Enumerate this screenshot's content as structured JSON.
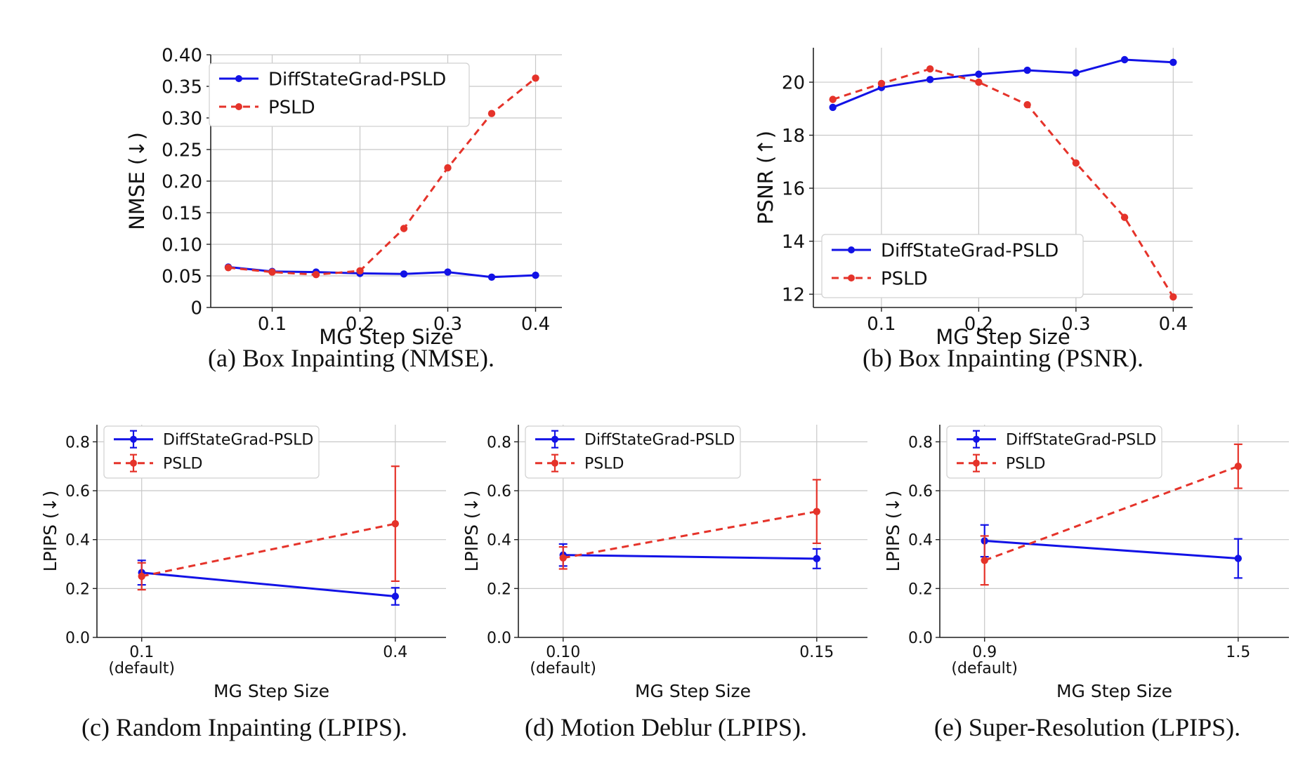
{
  "colors": {
    "series_a": "#1212e6",
    "series_b": "#e5332a",
    "grid": "#c8c8c8",
    "axis": "#222222"
  },
  "chart_data": [
    {
      "id": "a",
      "type": "line",
      "caption": "(a) Box Inpainting (NMSE).",
      "xlabel": "MG Step Size",
      "ylabel": "NMSE (↓)",
      "xlim": [
        0.03,
        0.43
      ],
      "ylim": [
        0,
        0.4
      ],
      "xticks": [
        0.1,
        0.2,
        0.3,
        0.4
      ],
      "xtick_labels": [
        "0.1",
        "0.2",
        "0.3",
        "0.4"
      ],
      "yticks": [
        0,
        0.05,
        0.1,
        0.15,
        0.2,
        0.25,
        0.3,
        0.35,
        0.4
      ],
      "ytick_labels": [
        "0",
        "0.05",
        "0.10",
        "0.15",
        "0.20",
        "0.25",
        "0.30",
        "0.35",
        "0.40"
      ],
      "legend_position": "top-left",
      "x": [
        0.05,
        0.1,
        0.15,
        0.2,
        0.25,
        0.3,
        0.35,
        0.4
      ],
      "series": [
        {
          "name": "DiffStateGrad-PSLD",
          "style": "solid",
          "color": "#1212e6",
          "values": [
            0.064,
            0.057,
            0.056,
            0.054,
            0.053,
            0.056,
            0.048,
            0.051
          ]
        },
        {
          "name": "PSLD",
          "style": "dashed",
          "color": "#e5332a",
          "values": [
            0.063,
            0.056,
            0.052,
            0.058,
            0.125,
            0.221,
            0.307,
            0.363
          ]
        }
      ]
    },
    {
      "id": "b",
      "type": "line",
      "caption": "(b) Box Inpainting (PSNR).",
      "xlabel": "MG Step Size",
      "ylabel": "PSNR (↑)",
      "xlim": [
        0.03,
        0.42
      ],
      "ylim": [
        11.5,
        21.3
      ],
      "xticks": [
        0.1,
        0.2,
        0.3,
        0.4
      ],
      "xtick_labels": [
        "0.1",
        "0.2",
        "0.3",
        "0.4"
      ],
      "yticks": [
        12,
        14,
        16,
        18,
        20
      ],
      "ytick_labels": [
        "12",
        "14",
        "16",
        "18",
        "20"
      ],
      "legend_position": "bottom-left",
      "x": [
        0.05,
        0.1,
        0.15,
        0.2,
        0.25,
        0.3,
        0.35,
        0.4
      ],
      "series": [
        {
          "name": "DiffStateGrad-PSLD",
          "style": "solid",
          "color": "#1212e6",
          "values": [
            19.05,
            19.8,
            20.1,
            20.3,
            20.45,
            20.35,
            20.85,
            20.75
          ]
        },
        {
          "name": "PSLD",
          "style": "dashed",
          "color": "#e5332a",
          "values": [
            19.35,
            19.95,
            20.5,
            20.0,
            19.15,
            16.95,
            14.9,
            11.9
          ]
        }
      ]
    },
    {
      "id": "c",
      "type": "line",
      "caption": "(c) Random Inpainting (LPIPS).",
      "xlabel": "MG Step Size",
      "ylabel": "LPIPS (↓)",
      "xlim": [
        0,
        1.17
      ],
      "ylim": [
        0,
        0.87
      ],
      "xticks": [
        0.15,
        1.0
      ],
      "xtick_labels": [
        "0.1\n(default)",
        "0.4"
      ],
      "yticks": [
        0,
        0.2,
        0.4,
        0.6,
        0.8
      ],
      "ytick_labels": [
        "0.0",
        "0.2",
        "0.4",
        "0.6",
        "0.8"
      ],
      "legend_position": "top-left",
      "x": [
        0.15,
        1.0
      ],
      "series": [
        {
          "name": "DiffStateGrad-PSLD",
          "style": "solid",
          "color": "#1212e6",
          "values": [
            0.265,
            0.168
          ],
          "err": [
            0.05,
            0.035
          ]
        },
        {
          "name": "PSLD",
          "style": "dashed",
          "color": "#e5332a",
          "values": [
            0.25,
            0.465
          ],
          "err": [
            0.055,
            0.235
          ]
        }
      ]
    },
    {
      "id": "d",
      "type": "line",
      "caption": "(d) Motion Deblur (LPIPS).",
      "xlabel": "MG Step Size",
      "ylabel": "LPIPS (↓)",
      "xlim": [
        0,
        1.17
      ],
      "ylim": [
        0,
        0.87
      ],
      "xticks": [
        0.15,
        1.0
      ],
      "xtick_labels": [
        "0.10\n(default)",
        "0.15"
      ],
      "yticks": [
        0,
        0.2,
        0.4,
        0.6,
        0.8
      ],
      "ytick_labels": [
        "0.0",
        "0.2",
        "0.4",
        "0.6",
        "0.8"
      ],
      "legend_position": "top-left",
      "x": [
        0.15,
        1.0
      ],
      "series": [
        {
          "name": "DiffStateGrad-PSLD",
          "style": "solid",
          "color": "#1212e6",
          "values": [
            0.337,
            0.322
          ],
          "err": [
            0.045,
            0.04
          ]
        },
        {
          "name": "PSLD",
          "style": "dashed",
          "color": "#e5332a",
          "values": [
            0.325,
            0.515
          ],
          "err": [
            0.045,
            0.13
          ]
        }
      ]
    },
    {
      "id": "e",
      "type": "line",
      "caption": "(e) Super-Resolution (LPIPS).",
      "xlabel": "MG Step Size",
      "ylabel": "LPIPS (↓)",
      "xlim": [
        0,
        1.17
      ],
      "ylim": [
        0,
        0.87
      ],
      "xticks": [
        0.15,
        1.0
      ],
      "xtick_labels": [
        "0.9\n(default)",
        "1.5"
      ],
      "yticks": [
        0,
        0.2,
        0.4,
        0.6,
        0.8
      ],
      "ytick_labels": [
        "0.0",
        "0.2",
        "0.4",
        "0.6",
        "0.8"
      ],
      "legend_position": "top-left",
      "x": [
        0.15,
        1.0
      ],
      "series": [
        {
          "name": "DiffStateGrad-PSLD",
          "style": "solid",
          "color": "#1212e6",
          "values": [
            0.395,
            0.323
          ],
          "err": [
            0.065,
            0.08
          ]
        },
        {
          "name": "PSLD",
          "style": "dashed",
          "color": "#e5332a",
          "values": [
            0.315,
            0.7
          ],
          "err": [
            0.1,
            0.09
          ]
        }
      ]
    }
  ]
}
